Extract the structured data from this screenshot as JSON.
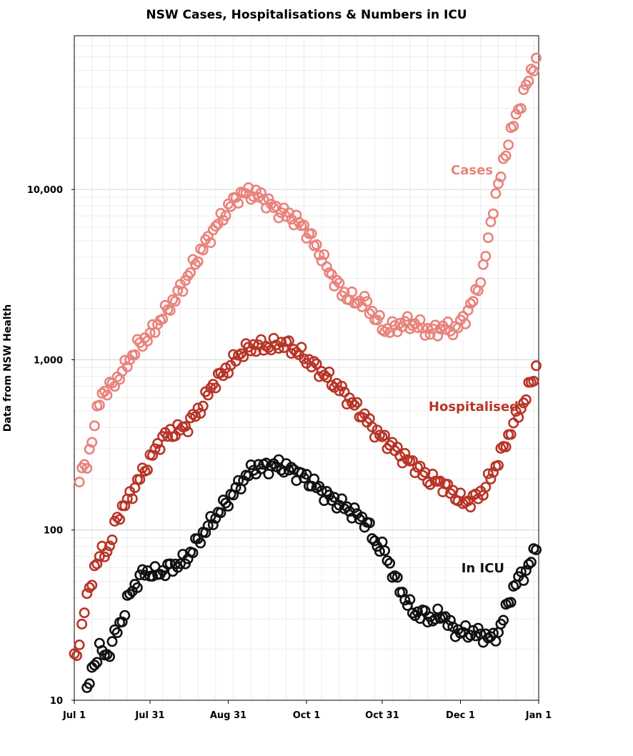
{
  "chart_data": {
    "type": "scatter",
    "title": "NSW Cases, Hospitalisations & Numbers in ICU",
    "xlabel": "",
    "ylabel": "Data from NSW Health",
    "yscale": "log",
    "ylim": [
      10,
      80000
    ],
    "xlim": [
      "2021-07-01",
      "2022-01-01"
    ],
    "x_ticks": [
      "Jul 1",
      "Jul 31",
      "Aug 31",
      "Oct 1",
      "Oct 31",
      "Dec 1",
      "Jan 1"
    ],
    "y_ticks": [
      "10",
      "100",
      "1,000",
      "10,000"
    ],
    "grid": true,
    "series": [
      {
        "name": "Cases",
        "color": "#e8837c",
        "keypoints": [
          [
            "2021-07-03",
            210
          ],
          [
            "2021-07-06",
            240
          ],
          [
            "2021-07-09",
            420
          ],
          [
            "2021-07-12",
            640
          ],
          [
            "2021-07-16",
            700
          ],
          [
            "2021-07-21",
            900
          ],
          [
            "2021-07-26",
            1200
          ],
          [
            "2021-07-31",
            1400
          ],
          [
            "2021-08-05",
            1800
          ],
          [
            "2021-08-10",
            2300
          ],
          [
            "2021-08-15",
            3100
          ],
          [
            "2021-08-20",
            4300
          ],
          [
            "2021-08-25",
            5700
          ],
          [
            "2021-08-31",
            7800
          ],
          [
            "2021-09-04",
            9200
          ],
          [
            "2021-09-08",
            9600
          ],
          [
            "2021-09-13",
            9100
          ],
          [
            "2021-09-19",
            7600
          ],
          [
            "2021-09-25",
            6900
          ],
          [
            "2021-09-30",
            6000
          ],
          [
            "2021-10-05",
            4600
          ],
          [
            "2021-10-10",
            3300
          ],
          [
            "2021-10-15",
            2500
          ],
          [
            "2021-10-20",
            2200
          ],
          [
            "2021-10-24",
            2200
          ],
          [
            "2021-10-28",
            1800
          ],
          [
            "2021-11-01",
            1500
          ],
          [
            "2021-11-05",
            1550
          ],
          [
            "2021-11-09",
            1650
          ],
          [
            "2021-11-14",
            1600
          ],
          [
            "2021-11-19",
            1450
          ],
          [
            "2021-11-24",
            1550
          ],
          [
            "2021-11-29",
            1500
          ],
          [
            "2021-12-03",
            1800
          ],
          [
            "2021-12-07",
            2400
          ],
          [
            "2021-12-10",
            3400
          ],
          [
            "2021-12-12",
            5000
          ],
          [
            "2021-12-14",
            8000
          ],
          [
            "2021-12-17",
            12000
          ],
          [
            "2021-12-19",
            17000
          ],
          [
            "2021-12-22",
            24000
          ],
          [
            "2021-12-25",
            33000
          ],
          [
            "2021-12-28",
            44000
          ],
          [
            "2021-12-31",
            60000
          ]
        ]
      },
      {
        "name": "Hospitalised",
        "color": "#b83427",
        "keypoints": [
          [
            "2021-07-01",
            17
          ],
          [
            "2021-07-03",
            22
          ],
          [
            "2021-07-05",
            34
          ],
          [
            "2021-07-07",
            45
          ],
          [
            "2021-07-09",
            60
          ],
          [
            "2021-07-12",
            74
          ],
          [
            "2021-07-15",
            78
          ],
          [
            "2021-07-18",
            120
          ],
          [
            "2021-07-21",
            140
          ],
          [
            "2021-07-26",
            190
          ],
          [
            "2021-07-31",
            260
          ],
          [
            "2021-08-05",
            350
          ],
          [
            "2021-08-10",
            380
          ],
          [
            "2021-08-14",
            400
          ],
          [
            "2021-08-20",
            520
          ],
          [
            "2021-08-25",
            720
          ],
          [
            "2021-08-31",
            900
          ],
          [
            "2021-09-05",
            1100
          ],
          [
            "2021-09-10",
            1200
          ],
          [
            "2021-09-17",
            1200
          ],
          [
            "2021-09-22",
            1250
          ],
          [
            "2021-09-28",
            1100
          ],
          [
            "2021-10-03",
            950
          ],
          [
            "2021-10-08",
            820
          ],
          [
            "2021-10-14",
            680
          ],
          [
            "2021-10-19",
            560
          ],
          [
            "2021-10-24",
            460
          ],
          [
            "2021-10-29",
            370
          ],
          [
            "2021-11-03",
            320
          ],
          [
            "2021-11-08",
            270
          ],
          [
            "2021-11-13",
            240
          ],
          [
            "2021-11-18",
            200
          ],
          [
            "2021-11-23",
            190
          ],
          [
            "2021-11-28",
            165
          ],
          [
            "2021-12-02",
            145
          ],
          [
            "2021-12-06",
            150
          ],
          [
            "2021-12-10",
            170
          ],
          [
            "2021-12-14",
            220
          ],
          [
            "2021-12-18",
            300
          ],
          [
            "2021-12-22",
            420
          ],
          [
            "2021-12-26",
            560
          ],
          [
            "2021-12-30",
            800
          ],
          [
            "2021-12-31",
            900
          ]
        ]
      },
      {
        "name": "In ICU",
        "color": "#111111",
        "keypoints": [
          [
            "2021-07-06",
            11
          ],
          [
            "2021-07-08",
            15
          ],
          [
            "2021-07-11",
            20
          ],
          [
            "2021-07-14",
            18
          ],
          [
            "2021-07-17",
            24
          ],
          [
            "2021-07-20",
            30
          ],
          [
            "2021-07-23",
            42
          ],
          [
            "2021-07-26",
            50
          ],
          [
            "2021-07-29",
            57
          ],
          [
            "2021-08-02",
            55
          ],
          [
            "2021-08-06",
            58
          ],
          [
            "2021-08-10",
            62
          ],
          [
            "2021-08-14",
            66
          ],
          [
            "2021-08-18",
            82
          ],
          [
            "2021-08-22",
            100
          ],
          [
            "2021-08-26",
            120
          ],
          [
            "2021-08-31",
            150
          ],
          [
            "2021-09-05",
            190
          ],
          [
            "2021-09-10",
            230
          ],
          [
            "2021-09-15",
            235
          ],
          [
            "2021-09-20",
            240
          ],
          [
            "2021-09-25",
            225
          ],
          [
            "2021-09-30",
            205
          ],
          [
            "2021-10-05",
            180
          ],
          [
            "2021-10-10",
            155
          ],
          [
            "2021-10-15",
            140
          ],
          [
            "2021-10-20",
            125
          ],
          [
            "2021-10-25",
            110
          ],
          [
            "2021-10-28",
            85
          ],
          [
            "2021-11-01",
            75
          ],
          [
            "2021-11-05",
            52
          ],
          [
            "2021-11-09",
            40
          ],
          [
            "2021-11-12",
            33
          ],
          [
            "2021-11-16",
            32
          ],
          [
            "2021-11-20",
            30
          ],
          [
            "2021-11-24",
            32
          ],
          [
            "2021-11-28",
            26
          ],
          [
            "2021-12-02",
            25
          ],
          [
            "2021-12-06",
            25
          ],
          [
            "2021-12-10",
            24
          ],
          [
            "2021-12-14",
            23
          ],
          [
            "2021-12-17",
            27
          ],
          [
            "2021-12-20",
            38
          ],
          [
            "2021-12-24",
            52
          ],
          [
            "2021-12-28",
            60
          ],
          [
            "2021-12-31",
            80
          ]
        ]
      }
    ]
  }
}
